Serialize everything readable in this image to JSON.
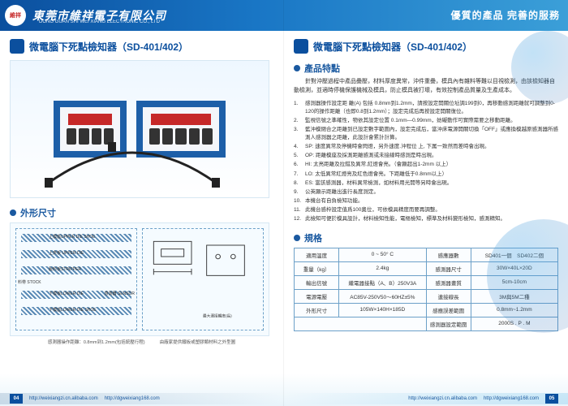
{
  "colors": {
    "brand": "#0b4f9e",
    "accent": "#1a59a0",
    "banner_grad": [
      "#0b4f9e",
      "#1976c5",
      "#3b9fd8"
    ],
    "device": "#1d5fa8",
    "led": "#c62828",
    "border": "#6ca0c8"
  },
  "header": {
    "company_cn": "東莞市維祥電子有限公司",
    "company_en": "DONG GUAN SHI WEI XIANG ELECTRONIC CO., LTD",
    "slogan": "優質的產品 完善的服務",
    "logo_text": "維祥\n電子"
  },
  "left": {
    "title": "微電腦下死點檢知器（SD-401/402）",
    "section_dim": "外形尺寸",
    "dim_labels": {
      "upper_die": "上模座UPPER DIE SHOE",
      "upper_die2": "上夾板 UPPER DIE",
      "stripper": "脫料板STRIPPER",
      "lower_die": "下模板LOWER DIE",
      "lower_shoe": "下模座LOWER DIE SHOE",
      "stock": "料帶 STOCK",
      "sensor": "感測器 SENSOR"
    },
    "footnote_left": "感測器操作距離：0.8mm到1.2mm(包括銃壓行程)",
    "footnote_right": "由廠家提供鐵板或塑膠類材料之外型圖"
  },
  "right": {
    "title": "微電腦下死點檢知器（SD-401/402）",
    "section_features": "產品特點",
    "intro": "針對沖壓過程中產品疊壓，材料厚度異常，沖件重疊，模具內有雜料等難以目視檢測，由該檢知器自動檢測，並適時停機保護機械及模具，防止模具被打壞，有效控制產品質量及生產成本。",
    "features": [
      "感測器操作設定距 離(A) 包括 0.8mm到1.2mm，請按設定開關位址調199到0，再移動感測距離就可調整到0-120的操作距離（也即0.8到1.2mm）；設定完成后再按設定開關復位。",
      "監視信號之準確性，物依其設定位置 0.1mm—0.99mm，妨礙動作可實際需要之移動距離。",
      "藍沖模閉合之距離到已設定數字範圍內，設定完成后，當沖床電源開關切換「OFF」或應換模越原感測器所感測人感測器之距離，此設計會累計計算。",
      "SP: 速度異常及停機時會閃燈，另外速度.沖程位 上, 下属一致然而差時會出現。",
      "OP: 距離模座及採測距離感測或未接線時感測是時出現。",
      "HI: 太亮距離及拉錯及異常,紅燈會亮。（會顯超出1-2mm 以上）",
      "LO: 太低異常紅燈亮及紅色燈會亮。下距離低于0.8mm以上）",
      "ES: 當該感測器，材料異常檢測，如材料用光開等另時會出現。",
      "公英顯示距離出進行長度測定。",
      "本機台有自負檢知功能。",
      "此機台感枠設定值爲100奧位，可依模具精度而要再調整。",
      "此檢知可便於模具設計，材料檢知性能，電樞檢知，標準及材料變形檢知，感測精知。"
    ],
    "section_spec": "規格",
    "spec_rows": [
      {
        "k1": "適用溫度",
        "v1": "0 ~ 50° C",
        "k2": "感應器數",
        "v2": "SD401一個　SD402二個"
      },
      {
        "k1": "重量（kg）",
        "v1": "2.4kg",
        "k2": "感測器尺寸",
        "v2": "30W×40L×20D"
      },
      {
        "k1": "輸出信號",
        "v1": "繼電器接點（A、B）250V3A",
        "k2": "感測器畫質",
        "v2": "5cm-10cm"
      },
      {
        "k1": "電源電壓",
        "v1": "AC85V-250V50～60HZ±5%",
        "k2": "連接線長",
        "v2": "3M與5M二種"
      },
      {
        "k1": "外形尺寸",
        "v1": "105W×140H×185D",
        "k2": "感應誤差範圍",
        "v2": "0.8mm~1.2mm"
      },
      {
        "k1": "",
        "v1": "",
        "k2": "感測器設定範圍",
        "v2": "2000S . P . M"
      }
    ]
  },
  "footer": {
    "left_page": "04",
    "right_page": "05",
    "url1": "http://weixiangzi.cn.alibaba.com",
    "url2": "http://dgweixiang168.com",
    "url3": "http://weixiangzi.cn.alibaba.com",
    "url4": "http://dgweixiang168.com"
  }
}
